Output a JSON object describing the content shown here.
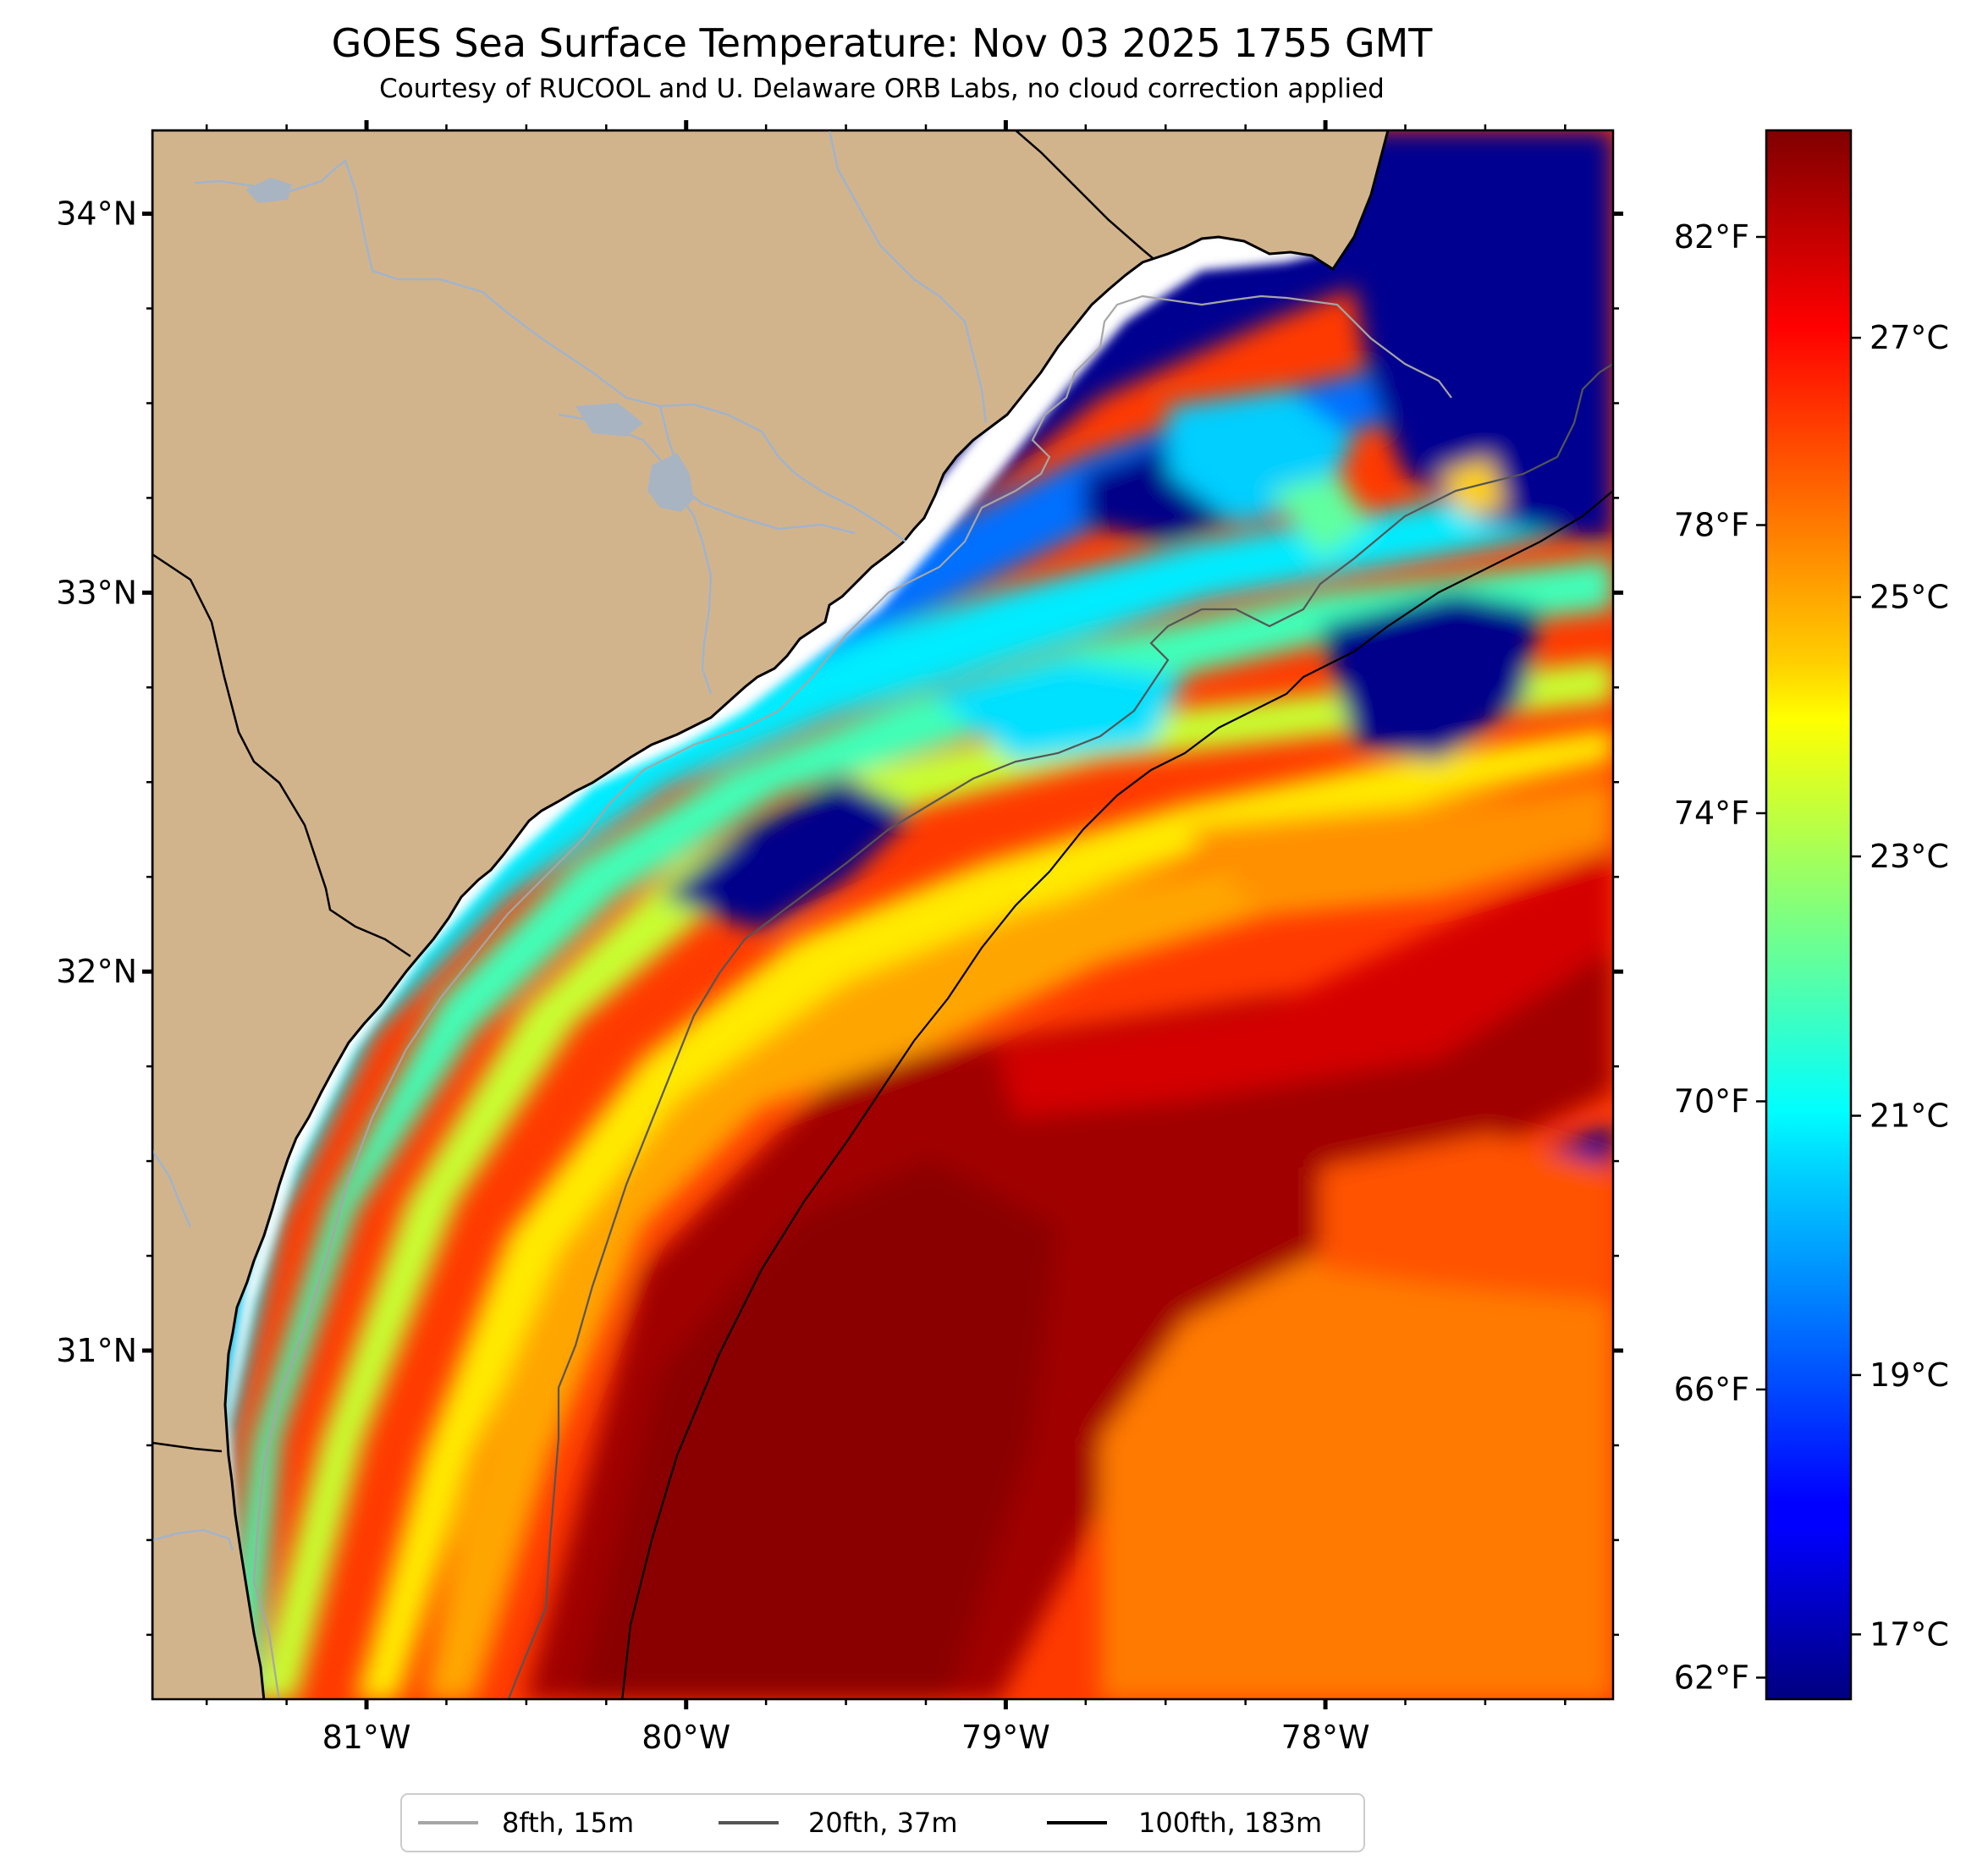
{
  "title": "GOES Sea Surface Temperature: Nov 03 2025 1755 GMT",
  "subtitle": "Courtesy of RUCOOL and U. Delaware ORB Labs, no cloud correction applied",
  "map": {
    "lon_range": [
      -81.67,
      -77.1
    ],
    "lat_range": [
      30.08,
      34.22
    ],
    "lat_ticks": [
      {
        "value": 34,
        "label": "34°N"
      },
      {
        "value": 33,
        "label": "33°N"
      },
      {
        "value": 32,
        "label": "32°N"
      },
      {
        "value": 31,
        "label": "31°N"
      }
    ],
    "lon_ticks": [
      {
        "value": -81,
        "label": "81°W"
      },
      {
        "value": -80,
        "label": "80°W"
      },
      {
        "value": -79,
        "label": "79°W"
      },
      {
        "value": -78,
        "label": "78°W"
      }
    ],
    "colors": {
      "land": "#d2b48c",
      "river": "#9fb3cf",
      "coastline": "#000000",
      "no_data": "#ffffff"
    }
  },
  "colorbar": {
    "colormap": "jet",
    "celsius_range": [
      16.5,
      28.6
    ],
    "celsius_ticks": [
      {
        "value": 17,
        "label": "17°C"
      },
      {
        "value": 19,
        "label": "19°C"
      },
      {
        "value": 21,
        "label": "21°C"
      },
      {
        "value": 23,
        "label": "23°C"
      },
      {
        "value": 25,
        "label": "25°C"
      },
      {
        "value": 27,
        "label": "27°C"
      }
    ],
    "fahrenheit_ticks": [
      {
        "value": 62,
        "label": "62°F"
      },
      {
        "value": 66,
        "label": "66°F"
      },
      {
        "value": 70,
        "label": "70°F"
      },
      {
        "value": 74,
        "label": "74°F"
      },
      {
        "value": 78,
        "label": "78°F"
      },
      {
        "value": 82,
        "label": "82°F"
      }
    ]
  },
  "legend": {
    "entries": [
      {
        "label": "8fth, 15m",
        "color": "#a6a6a6"
      },
      {
        "label": "20fth, 37m",
        "color": "#555555"
      },
      {
        "label": "100fth, 183m",
        "color": "#000000"
      }
    ]
  }
}
